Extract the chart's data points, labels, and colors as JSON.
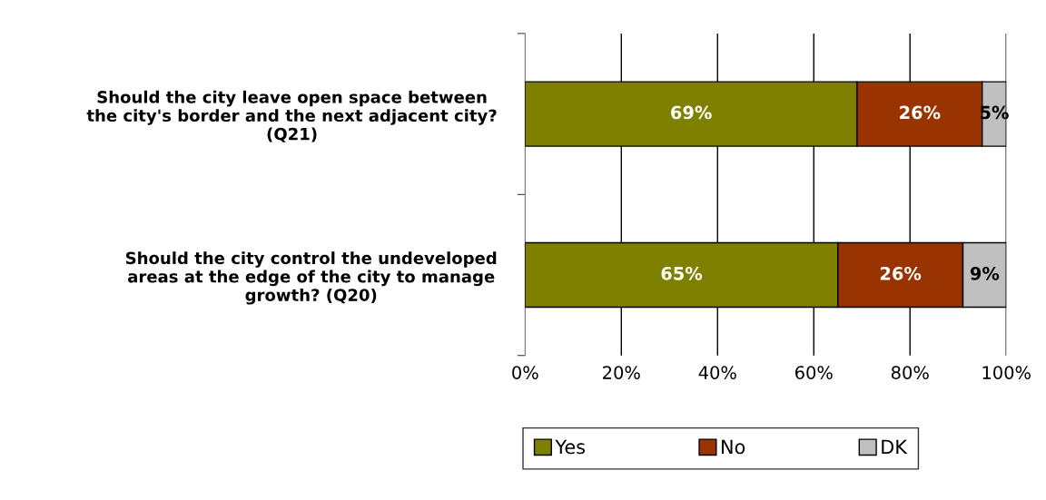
{
  "chart_data": {
    "type": "bar",
    "orientation": "horizontal",
    "stacked": true,
    "categories": [
      "Should the city leave open space between\nthe city's border and the next adjacent city?\n(Q21)",
      "Should the city control the undeveloped\nareas at the edge of the city to manage\ngrowth? (Q20)"
    ],
    "series": [
      {
        "name": "Yes",
        "color": "#808000",
        "values": [
          69,
          65
        ],
        "value_labels": [
          "69%",
          "65%"
        ]
      },
      {
        "name": "No",
        "color": "#993300",
        "values": [
          26,
          26
        ],
        "value_labels": [
          "26%",
          "26%"
        ]
      },
      {
        "name": "DK",
        "color": "#c0c0c0",
        "values": [
          5,
          9
        ],
        "value_labels": [
          "5%",
          "9%"
        ]
      }
    ],
    "xlim": [
      0,
      100
    ],
    "xticks": [
      {
        "value": 0,
        "label": "0%"
      },
      {
        "value": 20,
        "label": "20%"
      },
      {
        "value": 40,
        "label": "40%"
      },
      {
        "value": 60,
        "label": "60%"
      },
      {
        "value": 80,
        "label": "80%"
      },
      {
        "value": 100,
        "label": "100%"
      }
    ],
    "grid": "x",
    "legend": "bottom"
  }
}
